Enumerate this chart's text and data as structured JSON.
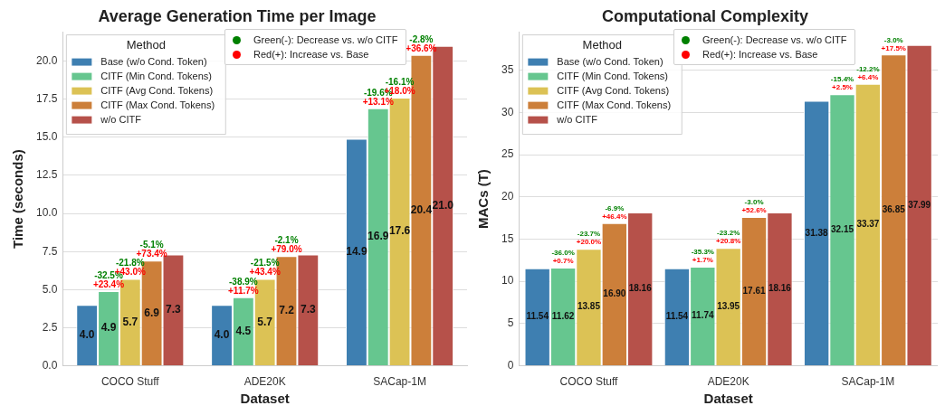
{
  "chart_data": [
    {
      "type": "bar",
      "title": "Average Generation Time per Image",
      "xlabel": "Dataset",
      "ylabel": "Time (seconds)",
      "legend_title": "Method",
      "legend": "top left",
      "grid": "y",
      "categories": [
        "COCO Stuff",
        "ADE20K",
        "SACap-1M"
      ],
      "ylim": [
        0,
        21.9
      ],
      "yticks": [
        {
          "value": 0,
          "label": "0.0"
        },
        2.5,
        {
          "value": 5,
          "label": "5.0"
        },
        7.5,
        {
          "value": 10,
          "label": "10.0"
        },
        12.5,
        {
          "value": 15,
          "label": "15.0"
        },
        17.5,
        {
          "value": 20,
          "label": "20.0"
        }
      ],
      "series": [
        {
          "name": "Base (w/o Cond. Token)",
          "color": "#3e7fb1",
          "values": [
            4.0,
            4.0,
            14.9
          ],
          "value_labels": [
            "4.0",
            "4.0",
            "14.9"
          ]
        },
        {
          "name": "CITF (Min Cond. Tokens)",
          "color": "#66c68f",
          "values": [
            4.9,
            4.5,
            16.9
          ],
          "value_labels": [
            "4.9",
            "4.5",
            "16.9"
          ]
        },
        {
          "name": "CITF (Avg Cond. Tokens)",
          "color": "#dcc255",
          "values": [
            5.7,
            5.7,
            17.6
          ],
          "value_labels": [
            "5.7",
            "5.7",
            "17.6"
          ]
        },
        {
          "name": "CITF (Max Cond. Tokens)",
          "color": "#cc7f3a",
          "values": [
            6.9,
            7.2,
            20.4
          ],
          "value_labels": [
            "6.9",
            "7.2",
            "20.4"
          ]
        },
        {
          "name": "w/o CITF",
          "color": "#b6514a",
          "values": [
            7.3,
            7.3,
            21.0
          ],
          "value_labels": [
            "7.3",
            "7.3",
            "21.0"
          ]
        }
      ],
      "annotations": [
        "Green(-): Decrease vs. w/o CITF",
        "Red(+): Increase vs. Base",
        "-32.5%",
        "+23.4%",
        "-21.8%",
        "+43.0%",
        "-5.1%",
        "+73.4%",
        "-38.9%",
        "+11.7%",
        "-21.5%",
        "+43.4%",
        "-2.1%",
        "+79.0%",
        "-19.6%",
        "+13.1%",
        "-16.1%",
        "+18.0%",
        "-2.8%",
        "+36.6%"
      ]
    },
    {
      "type": "bar",
      "title": "Computational Complexity",
      "xlabel": "Dataset",
      "ylabel": "MACs (T)",
      "legend_title": "Method",
      "legend": "top left",
      "grid": "y",
      "categories": [
        "COCO Stuff",
        "ADE20K",
        "SACap-1M"
      ],
      "ylim": [
        0,
        39.5
      ],
      "yticks": [
        0,
        5,
        10,
        15,
        20,
        25,
        30,
        35
      ],
      "series": [
        {
          "name": "Base (w/o Cond. Token)",
          "color": "#3e7fb1",
          "values": [
            11.54,
            11.54,
            31.38
          ],
          "value_labels": [
            "11.54",
            "11.54",
            "31.38"
          ]
        },
        {
          "name": "CITF (Min Cond. Tokens)",
          "color": "#66c68f",
          "values": [
            11.62,
            11.74,
            32.15
          ],
          "value_labels": [
            "11.62",
            "11.74",
            "32.15"
          ]
        },
        {
          "name": "CITF (Avg Cond. Tokens)",
          "color": "#dcc255",
          "values": [
            13.85,
            13.95,
            33.37
          ],
          "value_labels": [
            "13.85",
            "13.95",
            "33.37"
          ]
        },
        {
          "name": "CITF (Max Cond. Tokens)",
          "color": "#cc7f3a",
          "values": [
            16.9,
            17.61,
            36.85
          ],
          "value_labels": [
            "16.90",
            "17.61",
            "36.85"
          ]
        },
        {
          "name": "w/o CITF",
          "color": "#b6514a",
          "values": [
            18.16,
            18.16,
            37.99
          ],
          "value_labels": [
            "18.16",
            "18.16",
            "37.99"
          ]
        }
      ],
      "annotations": [
        "Green(-): Decrease vs. w/o CITF",
        "Red(+): Increase vs. Base",
        "-36.0%",
        "+0.7%",
        "-23.7%",
        "+20.0%",
        "-6.9%",
        "+46.4%",
        "-35.3%",
        "+1.7%",
        "-23.2%",
        "+20.8%",
        "-3.0%",
        "+52.6%",
        "-15.4%",
        "+2.5%",
        "-12.2%",
        "+6.4%",
        "-3.0%",
        "+17.5%"
      ]
    }
  ]
}
